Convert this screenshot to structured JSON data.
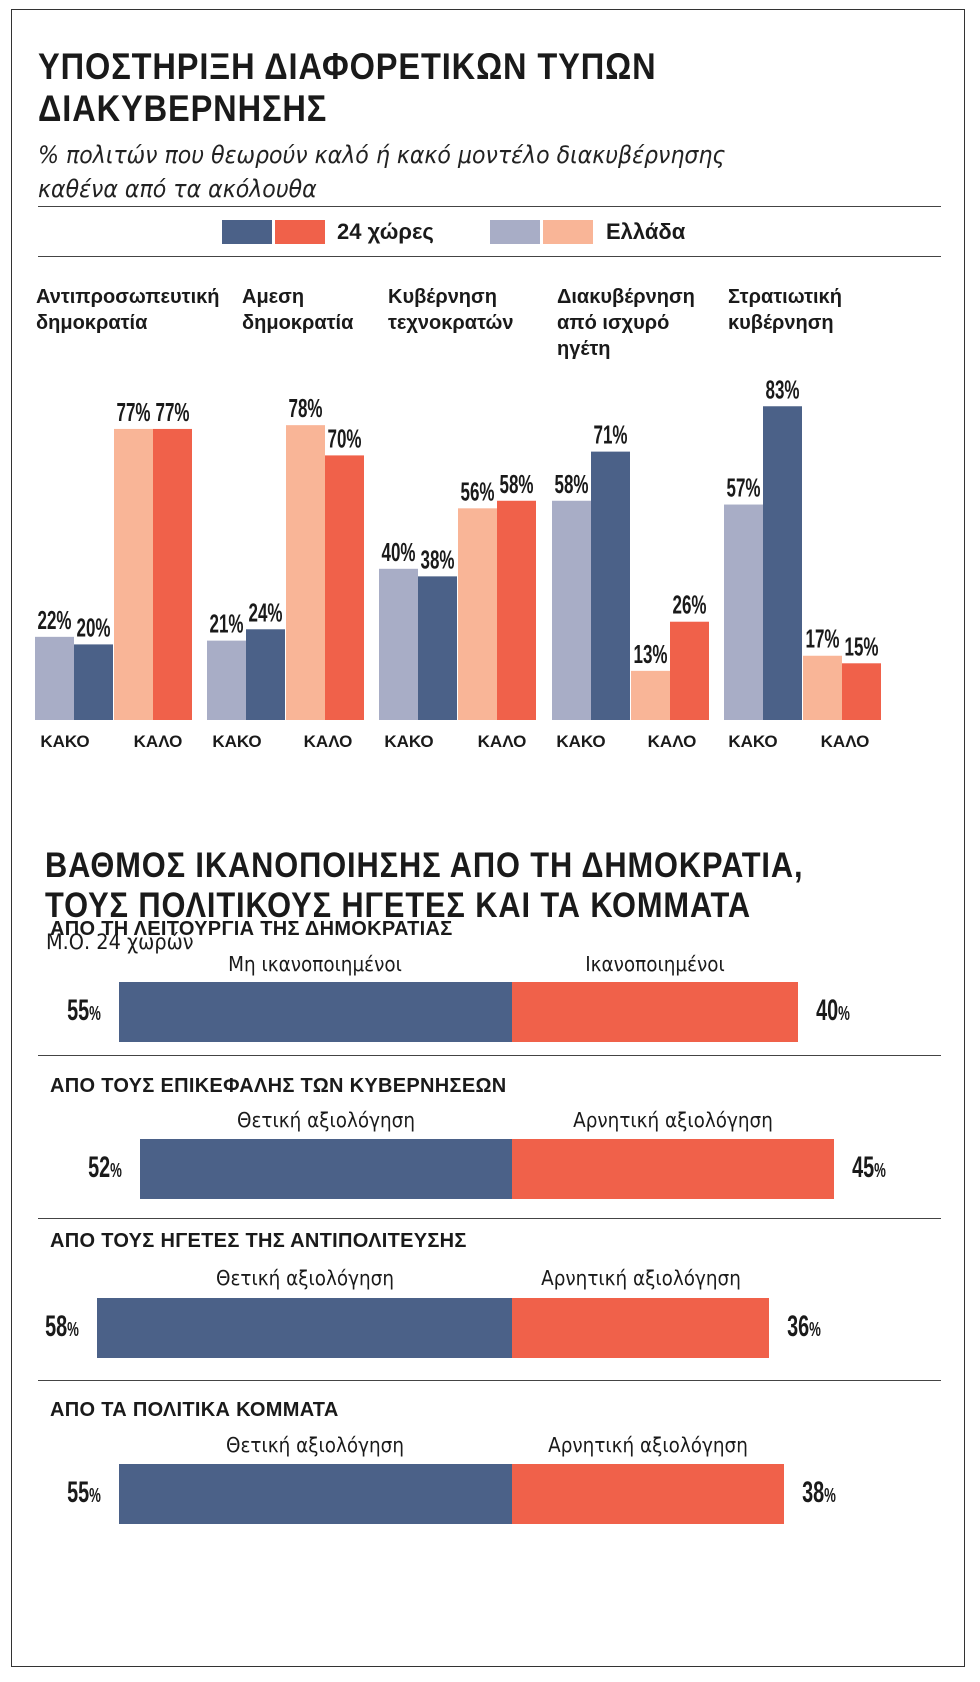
{
  "colors": {
    "global_dark": "#4b6188",
    "global_red": "#f0614a",
    "greece_grey": "#a8adc6",
    "greece_peach": "#f9b597"
  },
  "chart1": {
    "title": "ΥΠΟΣΤΗΡΙΞΗ ΔΙΑΦΟΡΕΤΙΚΩΝ ΤΥΠΩΝ ΔΙΑΚΥΒΕΡΝΗΣΗΣ",
    "subtitle": "% πολιτών που θεωρούν καλό ή κακό μοντέλο διακυβέρνησης καθένα από τα ακόλουθα",
    "legend": {
      "global": "24 χώρες",
      "greece": "Ελλάδα"
    }
  },
  "chart2": {
    "title_line1": "ΒΑΘΜΟΣ ΙΚΑΝΟΠΟΙΗΣΗΣ ΑΠΟ ΤΗ ΔΗΜΟΚΡΑΤΙΑ,",
    "title_line2": "ΤΟΥΣ ΠΟΛΙΤΙΚΟΥΣ ΗΓΕΤΕΣ ΚΑΙ ΤΑ ΚΟΜΜΑΤΑ",
    "subtitle": "Μ.Ο. 24 χωρών"
  },
  "chart_data": [
    {
      "type": "bar",
      "categories": [
        "Αντιπροσωπευτική δημοκρατία",
        "Αμεση δημοκρατία",
        "Κυβέρνηση τεχνοκρατών",
        "Διακυβέρνηση από ισχυρό ηγέτη",
        "Στρατιωτική κυβέρνηση"
      ],
      "groups": [
        "ΚΑΚΟ",
        "ΚΑΛΟ"
      ],
      "series": [
        {
          "name": "Ελλάδα ΚΑΚΟ",
          "values": [
            22,
            21,
            40,
            58,
            57
          ],
          "color": "#a8adc6"
        },
        {
          "name": "24 χώρες ΚΑΚΟ",
          "values": [
            20,
            24,
            38,
            71,
            83
          ],
          "color": "#4b6188"
        },
        {
          "name": "Ελλάδα ΚΑΛΟ",
          "values": [
            77,
            78,
            56,
            13,
            17
          ],
          "color": "#f9b597"
        },
        {
          "name": "24 χώρες ΚΑΛΟ",
          "values": [
            77,
            70,
            58,
            26,
            15
          ],
          "color": "#f0614a"
        }
      ],
      "unit": "%",
      "ylim": [
        0,
        100
      ]
    },
    {
      "type": "bar",
      "orientation": "horizontal-diverging",
      "unit": "%",
      "rows": [
        {
          "title": "ΑΠΟ ΤΗ ΛΕΙΤΟΥΡΓΙΑ ΤΗΣ ΔΗΜΟΚΡΑΤΙΑΣ",
          "left_label": "Μη ικανοποιημένοι",
          "left_value": 55,
          "right_label": "Ικανοποιημένοι",
          "right_value": 40
        },
        {
          "title": "ΑΠΟ ΤΟΥΣ ΕΠΙΚΕΦΑΛΗΣ ΤΩΝ ΚΥΒΕΡΝΗΣΕΩΝ",
          "left_label": "Θετική αξιολόγηση",
          "left_value": 52,
          "right_label": "Αρνητική αξιολόγηση",
          "right_value": 45
        },
        {
          "title": "ΑΠΟ ΤΟΥΣ ΗΓΕΤΕΣ ΤΗΣ ΑΝΤΙΠΟΛΙΤΕΥΣΗΣ",
          "left_label": "Θετική αξιολόγηση",
          "left_value": 58,
          "right_label": "Αρνητική αξιολόγηση",
          "right_value": 36
        },
        {
          "title": "ΑΠΟ ΤΑ ΠΟΛΙΤΙΚΑ ΚΟΜΜΑΤΑ",
          "left_label": "Θετική αξιολόγηση",
          "left_value": 55,
          "right_label": "Αρνητική αξιολόγηση",
          "right_value": 38
        }
      ]
    }
  ]
}
